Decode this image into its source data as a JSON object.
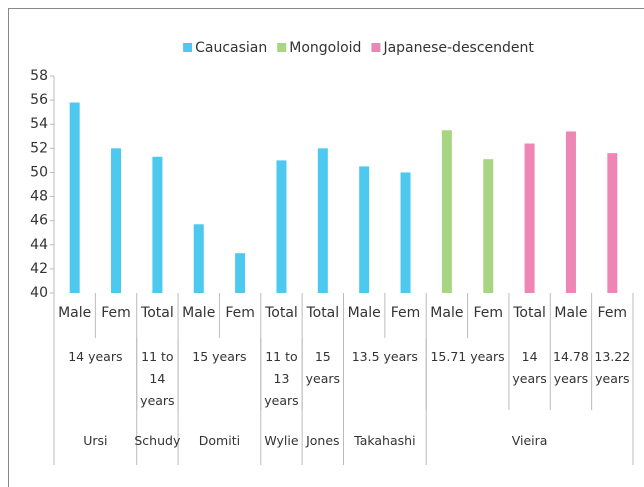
{
  "chart_data": {
    "type": "bar",
    "categories": [
      "Male",
      "Fem",
      "Total",
      "Male",
      "Fem",
      "Total",
      "Total",
      "Male",
      "Fem",
      "Male",
      "Fem",
      "Total",
      "Male",
      "Fem"
    ],
    "group_levels": [
      [
        {
          "label": "14 years",
          "span": 2
        },
        {
          "label": "11 to 14 years",
          "span": 1
        },
        {
          "label": "15 years",
          "span": 2
        },
        {
          "label": "11 to 13 years",
          "span": 1
        },
        {
          "label": "15 years",
          "span": 1
        },
        {
          "label": "13.5 years",
          "span": 2
        },
        {
          "label": "15.71 years",
          "span": 2
        },
        {
          "label": "14 years",
          "span": 1
        },
        {
          "label": "14.78 years",
          "span": 1
        },
        {
          "label": "13.22 years",
          "span": 1
        }
      ],
      [
        {
          "label": "Ursi",
          "span": 2
        },
        {
          "label": "Schudy",
          "span": 1
        },
        {
          "label": "Domiti",
          "span": 2
        },
        {
          "label": "Wylie",
          "span": 1
        },
        {
          "label": "Jones",
          "span": 1
        },
        {
          "label": "Takahashi",
          "span": 2
        },
        {
          "label": "Vieira",
          "span": 5
        }
      ]
    ],
    "series": [
      {
        "name": "Caucasian",
        "color": "#4dc8ef",
        "values": [
          55.8,
          52,
          51.3,
          45.7,
          43.3,
          51,
          52,
          50.5,
          50,
          null,
          null,
          null,
          null,
          null
        ]
      },
      {
        "name": "Mongoloid",
        "color": "#a8d582",
        "values": [
          null,
          null,
          null,
          null,
          null,
          null,
          null,
          null,
          null,
          53.5,
          51.1,
          null,
          null,
          null
        ]
      },
      {
        "name": "Japanese-descendent",
        "color": "#ee86b5",
        "values": [
          null,
          null,
          null,
          null,
          null,
          null,
          null,
          null,
          null,
          null,
          null,
          52.4,
          53.4,
          51.6
        ]
      }
    ],
    "ylim": [
      40,
      58
    ],
    "yticks": [
      40,
      42,
      44,
      46,
      48,
      50,
      52,
      54,
      56,
      58
    ],
    "legend": "top"
  }
}
